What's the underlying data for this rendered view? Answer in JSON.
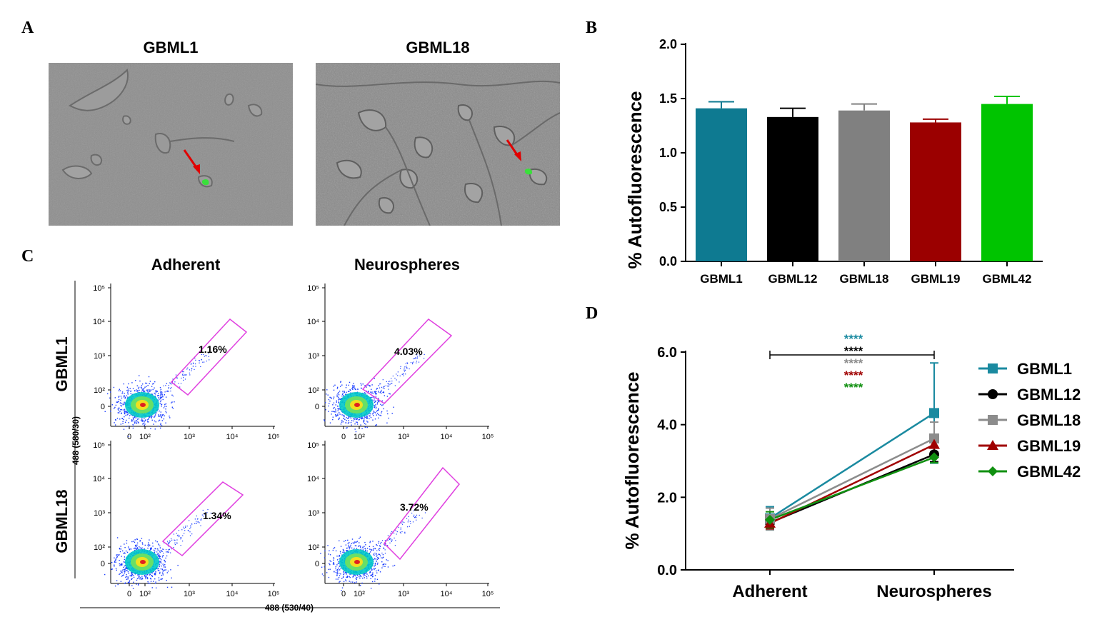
{
  "panels": {
    "a": {
      "letter": "A"
    },
    "b": {
      "letter": "B"
    },
    "c": {
      "letter": "C"
    },
    "d": {
      "letter": "D"
    }
  },
  "microscopy": {
    "left_title": "GBML1",
    "right_title": "GBML18"
  },
  "flow": {
    "col_titles": [
      "Adherent",
      "Neurospheres"
    ],
    "row_titles": [
      "GBML1",
      "GBML18"
    ],
    "y_axis_label": "488 (580/30)",
    "x_axis_label": "488 (530/40)",
    "gate_percent": [
      "1.16%",
      "4.03%",
      "1.34%",
      "3.72%"
    ],
    "tick_labels": {
      "y": [
        "10⁵",
        "10⁴",
        "10³",
        "10²",
        "0"
      ],
      "x": [
        "0",
        "10²",
        "10³",
        "10⁴",
        "10⁵"
      ]
    },
    "colors": {
      "gate": "#e040e0",
      "dots": "#1a3dff"
    }
  },
  "chart_data": [
    {
      "type": "bar",
      "panel": "B",
      "categories": [
        "GBML1",
        "GBML12",
        "GBML18",
        "GBML19",
        "GBML42"
      ],
      "values": [
        1.41,
        1.33,
        1.39,
        1.28,
        1.45
      ],
      "errors": [
        0.06,
        0.08,
        0.06,
        0.03,
        0.07
      ],
      "colors": [
        "#0e7a91",
        "#000000",
        "#808080",
        "#9b0000",
        "#00c400"
      ],
      "ylabel": "% Autofluorescence",
      "ylim": [
        0,
        2.0
      ],
      "yticks": [
        "0.0",
        "0.5",
        "1.0",
        "1.5",
        "2.0"
      ]
    },
    {
      "type": "line",
      "panel": "D",
      "categories": [
        "Adherent",
        "Neurospheres"
      ],
      "ylabel": "% Autofluorescence",
      "ylim": [
        0,
        6.0
      ],
      "yticks": [
        "0.0",
        "2.0",
        "4.0",
        "6.0"
      ],
      "series": [
        {
          "name": "GBML1",
          "values": [
            1.42,
            4.32
          ],
          "error": [
            0.32,
            1.38
          ],
          "color": "#1a8aa0",
          "marker": "square"
        },
        {
          "name": "GBML12",
          "values": [
            1.3,
            3.18
          ],
          "error": [
            0.12,
            0.2
          ],
          "color": "#000000",
          "marker": "circle"
        },
        {
          "name": "GBML18",
          "values": [
            1.4,
            3.62
          ],
          "error": [
            0.3,
            0.45
          ],
          "color": "#8c8c8c",
          "marker": "square"
        },
        {
          "name": "GBML19",
          "values": [
            1.28,
            3.45
          ],
          "error": [
            0.15,
            0.25
          ],
          "color": "#a00000",
          "marker": "triangle"
        },
        {
          "name": "GBML42",
          "values": [
            1.38,
            3.1
          ],
          "error": [
            0.22,
            0.15
          ],
          "color": "#109010",
          "marker": "diamond"
        }
      ],
      "significance": {
        "label": "****",
        "colors": [
          "#1a8aa0",
          "#000000",
          "#8c8c8c",
          "#a00000",
          "#109010"
        ]
      }
    }
  ]
}
